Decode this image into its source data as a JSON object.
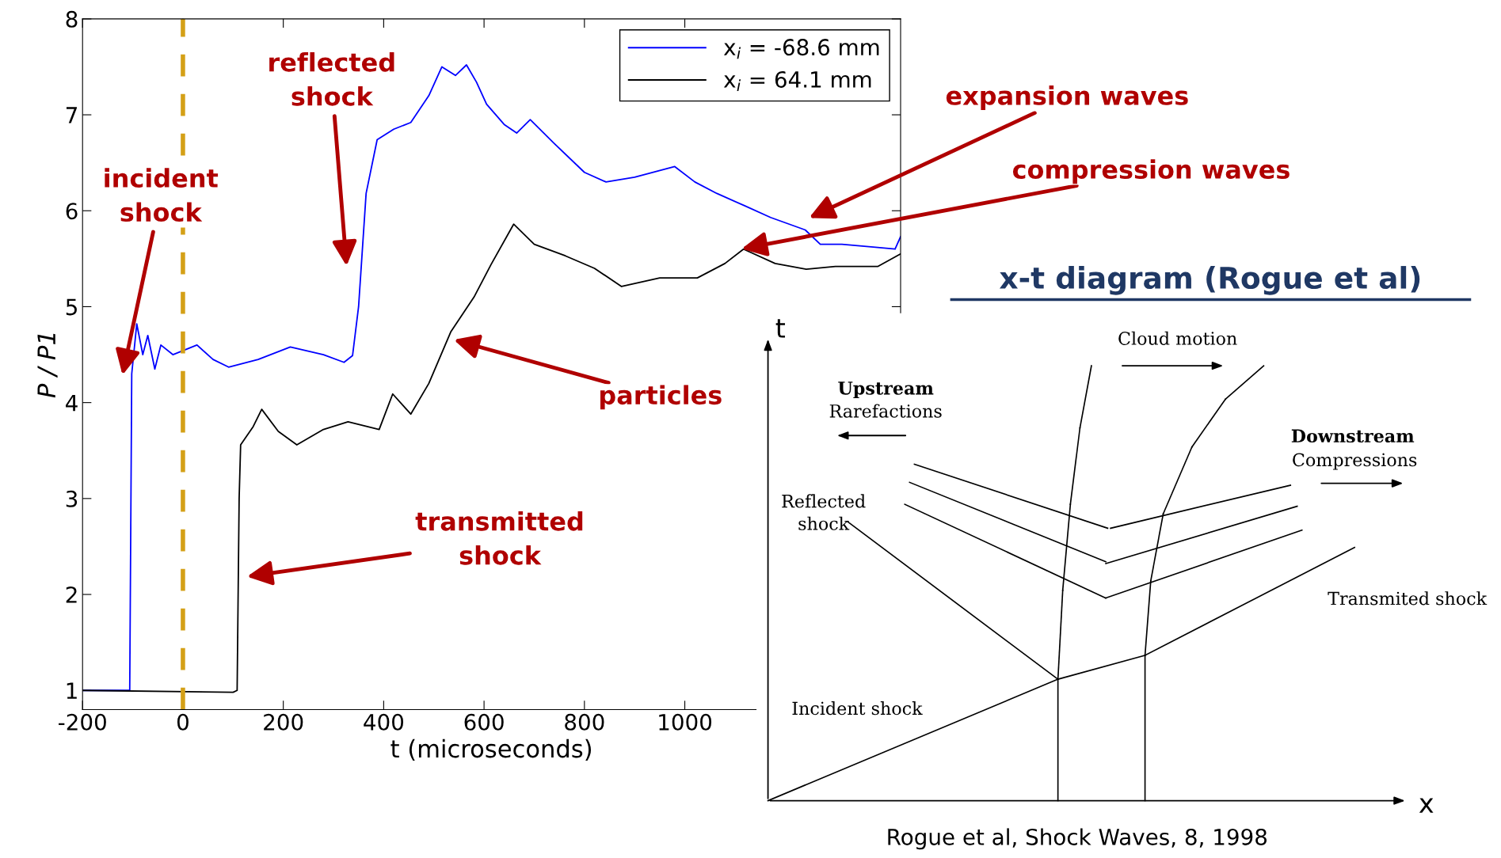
{
  "chart_data": [
    {
      "type": "line",
      "xlabel": "t (microseconds)",
      "ylabel": "P / P1",
      "xlim": [
        -200,
        1430
      ],
      "ylim": [
        0.8,
        8
      ],
      "xticks": [
        -200,
        0,
        200,
        400,
        600,
        800,
        1000
      ],
      "yticks": [
        1,
        2,
        3,
        4,
        5,
        6,
        7,
        8
      ],
      "grid": false,
      "legend": "top right",
      "marker": "none",
      "line_style": "solid",
      "series": [
        {
          "name": "x$_{i}$ = -68.6 mm",
          "color": "#0000ff",
          "x": [
            -200,
            -106,
            -102,
            -92,
            -80,
            -70,
            -56,
            -44,
            -20,
            28,
            60,
            91,
            150,
            214,
            280,
            321,
            338,
            350,
            365,
            387,
            420,
            454,
            490,
            516,
            543,
            565,
            585,
            605,
            640,
            665,
            692,
            740,
            800,
            843,
            900,
            980,
            1020,
            1064,
            1120,
            1171,
            1240,
            1270,
            1313,
            1380,
            1419,
            1430
          ],
          "values": [
            1,
            1,
            4.3,
            4.82,
            4.5,
            4.7,
            4.35,
            4.6,
            4.5,
            4.6,
            4.45,
            4.37,
            4.45,
            4.58,
            4.5,
            4.42,
            4.49,
            5.0,
            6.18,
            6.74,
            6.85,
            6.92,
            7.2,
            7.5,
            7.41,
            7.52,
            7.34,
            7.11,
            6.9,
            6.81,
            6.95,
            6.7,
            6.4,
            6.3,
            6.35,
            6.46,
            6.3,
            6.18,
            6.05,
            5.93,
            5.8,
            5.65,
            5.65,
            5.62,
            5.6,
            5.73
          ]
        },
        {
          "name": "x$_{i}$ = 64.1 mm",
          "color": "#000000",
          "x": [
            -200,
            100,
            108,
            112,
            115,
            140,
            157,
            190,
            227,
            280,
            329,
            391,
            418,
            454,
            490,
            534,
            580,
            614,
            659,
            700,
            762,
            820,
            874,
            950,
            1025,
            1080,
            1117,
            1180,
            1242,
            1300,
            1385,
            1430
          ],
          "values": [
            1,
            0.98,
            1,
            3.0,
            3.56,
            3.75,
            3.93,
            3.7,
            3.56,
            3.72,
            3.8,
            3.72,
            4.09,
            3.88,
            4.2,
            4.74,
            5.1,
            5.44,
            5.86,
            5.65,
            5.53,
            5.4,
            5.21,
            5.3,
            5.3,
            5.45,
            5.6,
            5.45,
            5.39,
            5.42,
            5.42,
            5.55
          ]
        }
      ],
      "ref_lines": [
        {
          "axis": "x",
          "value": 0,
          "color": "#d4a017",
          "line_style": "dashed"
        }
      ],
      "annotations": [
        "incident\nshock",
        "reflected\nshock",
        "transmitted\nshock",
        "particles",
        "expansion waves",
        "compression waves"
      ]
    },
    {
      "type": "other",
      "title": "x-t diagram (Rogue et al)",
      "annotations": [
        "t",
        "x",
        "Cloud motion",
        "Upstream",
        "Rarefactions",
        "Downstream",
        "Compressions",
        "Reflected\nshock",
        "Transmited shock",
        "Incident shock",
        "Rogue et al, Shock Waves, 8, 1998"
      ]
    }
  ]
}
